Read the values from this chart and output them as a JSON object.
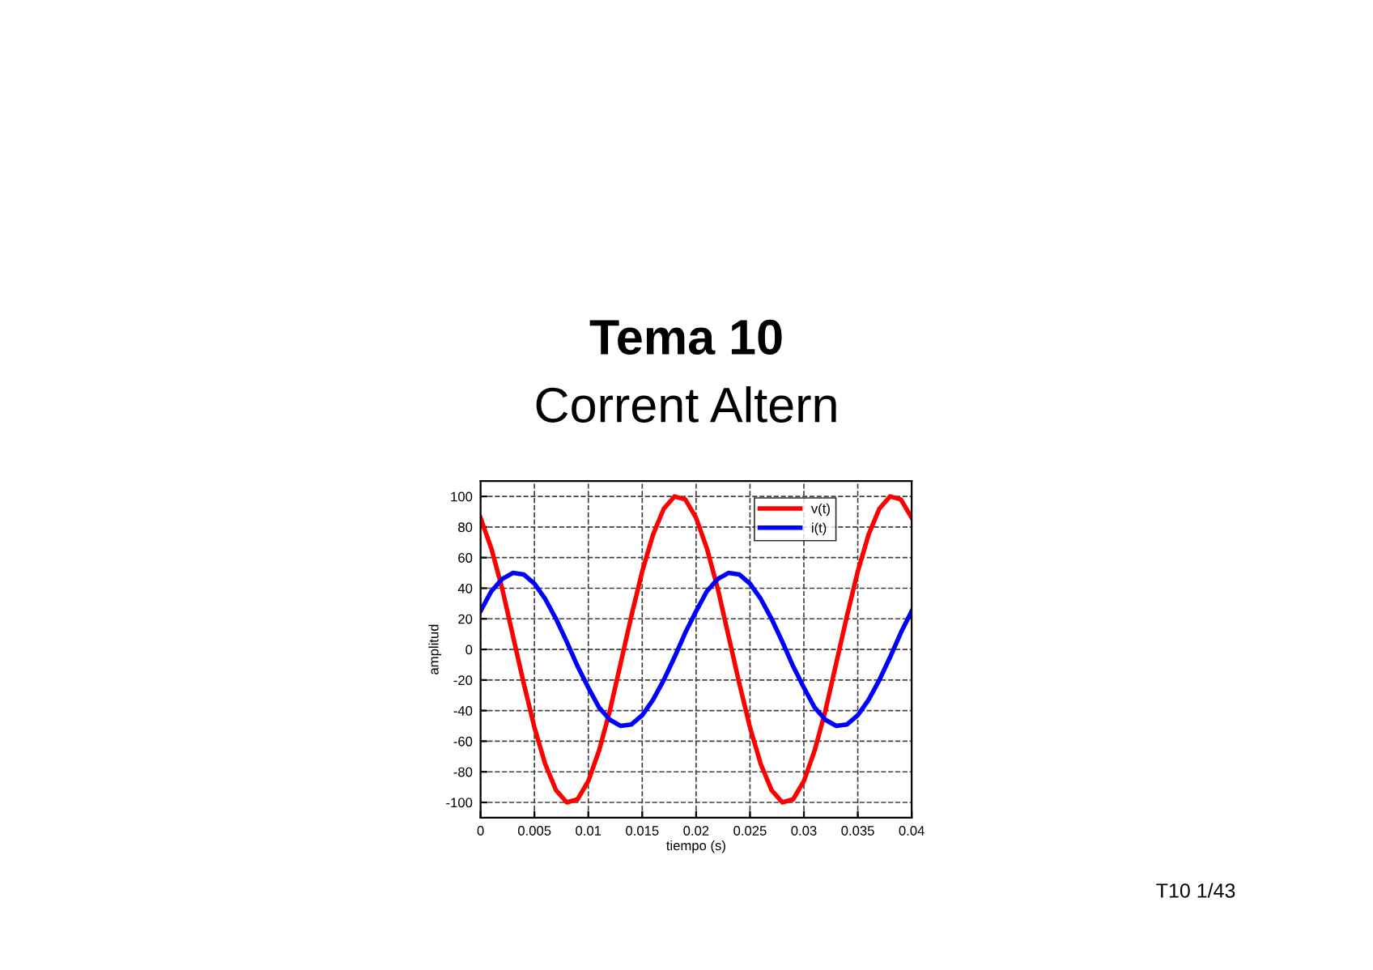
{
  "chart_data": {
    "type": "line",
    "title": "Tema 10",
    "subtitle": "Corrent Altern",
    "xlabel": "tiempo (s)",
    "ylabel": "amplitud",
    "annotations": [
      "T10 1/43"
    ],
    "x": [
      0,
      0.001,
      0.002,
      0.003,
      0.004,
      0.005,
      0.006,
      0.007,
      0.008,
      0.009,
      0.01,
      0.011,
      0.012,
      0.013,
      0.014,
      0.015,
      0.016,
      0.017,
      0.018,
      0.019,
      0.02,
      0.021,
      0.022,
      0.023,
      0.024,
      0.025,
      0.026,
      0.027,
      0.028,
      0.029,
      0.03,
      0.031,
      0.032,
      0.033,
      0.034,
      0.035,
      0.036,
      0.037,
      0.038,
      0.039,
      0.04
    ],
    "series": [
      {
        "name": "v(t)",
        "color": "#ff0000",
        "values": [
          86,
          66,
          40,
          9,
          -22,
          -51,
          -75,
          -92,
          -100,
          -98,
          -86,
          -66,
          -40,
          -9,
          22,
          51,
          75,
          92,
          100,
          98,
          86,
          66,
          40,
          9,
          -22,
          -51,
          -75,
          -92,
          -100,
          -98,
          -86,
          -66,
          -40,
          -9,
          22,
          51,
          75,
          92,
          100,
          98,
          86
        ]
      },
      {
        "name": "i(t)",
        "color": "#0000ff",
        "values": [
          25,
          38,
          46,
          50,
          49,
          43,
          33,
          20,
          5,
          -11,
          -25,
          -38,
          -46,
          -50,
          -49,
          -43,
          -33,
          -20,
          -5,
          11,
          25,
          38,
          46,
          50,
          49,
          43,
          33,
          20,
          5,
          -11,
          -25,
          -38,
          -46,
          -50,
          -49,
          -43,
          -33,
          -20,
          -5,
          11,
          25
        ]
      }
    ],
    "xlim": [
      0,
      0.04
    ],
    "xticks": [
      0,
      0.005,
      0.01,
      0.015,
      0.02,
      0.025,
      0.03,
      0.035,
      0.04
    ],
    "ylim": [
      -110,
      110
    ],
    "yticks": [
      -100,
      -80,
      -60,
      -40,
      -20,
      0,
      20,
      40,
      60,
      80,
      100
    ],
    "grid": true,
    "legend": "top right",
    "marker": "none",
    "line_style": "solid"
  }
}
